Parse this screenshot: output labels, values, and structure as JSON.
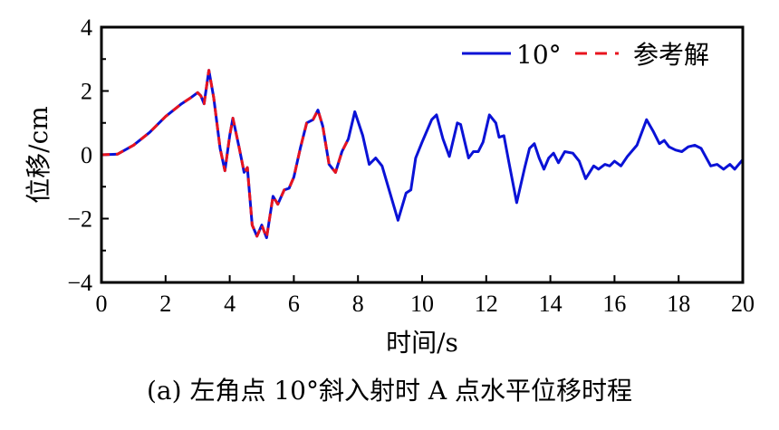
{
  "chart_data": {
    "type": "line",
    "title": "",
    "caption": "(a)  左角点 10°斜入射时 A 点水平位移时程",
    "xlabel": "时间/s",
    "ylabel": "位移/cm",
    "xlim": [
      0,
      20
    ],
    "ylim": [
      -4,
      4
    ],
    "xticks": [
      "0",
      "2",
      "4",
      "6",
      "8",
      "10",
      "12",
      "14",
      "16",
      "18",
      "20"
    ],
    "yticks": [
      "-4",
      "-2",
      "0",
      "2",
      "4"
    ],
    "grid": false,
    "legend_position": "top-right",
    "series": [
      {
        "name": "10°",
        "color": "#0a12d6",
        "style": "solid",
        "x": [
          0,
          0.5,
          1,
          1.5,
          2,
          2.5,
          2.8,
          3.0,
          3.1,
          3.2,
          3.35,
          3.5,
          3.7,
          3.85,
          4.0,
          4.1,
          4.3,
          4.45,
          4.55,
          4.7,
          4.85,
          5.0,
          5.15,
          5.35,
          5.5,
          5.7,
          5.85,
          6.0,
          6.2,
          6.4,
          6.6,
          6.75,
          6.9,
          7.1,
          7.3,
          7.5,
          7.7,
          7.9,
          8.15,
          8.35,
          8.55,
          8.75,
          9.0,
          9.25,
          9.5,
          9.65,
          9.8,
          10.0,
          10.3,
          10.45,
          10.65,
          10.85,
          11.1,
          11.2,
          11.45,
          11.6,
          11.75,
          11.9,
          12.1,
          12.3,
          12.4,
          12.55,
          12.7,
          12.95,
          13.2,
          13.35,
          13.5,
          13.65,
          13.8,
          13.95,
          14.1,
          14.25,
          14.45,
          14.7,
          14.9,
          15.1,
          15.35,
          15.5,
          15.7,
          15.85,
          16.0,
          16.2,
          16.4,
          16.7,
          17.0,
          17.2,
          17.4,
          17.55,
          17.7,
          17.9,
          18.1,
          18.3,
          18.5,
          18.7,
          19.0,
          19.2,
          19.4,
          19.6,
          19.75,
          20.0
        ],
        "y": [
          0,
          0.02,
          0.3,
          0.7,
          1.2,
          1.6,
          1.8,
          1.95,
          1.85,
          1.6,
          2.65,
          1.8,
          0.2,
          -0.5,
          0.6,
          1.15,
          0.2,
          -0.55,
          -0.4,
          -2.2,
          -2.55,
          -2.2,
          -2.6,
          -1.3,
          -1.55,
          -1.1,
          -1.05,
          -0.7,
          0.2,
          1.0,
          1.1,
          1.4,
          0.9,
          -0.3,
          -0.55,
          0.1,
          0.5,
          1.35,
          0.6,
          -0.3,
          -0.1,
          -0.35,
          -1.2,
          -2.05,
          -1.2,
          -1.1,
          -0.1,
          0.4,
          1.1,
          1.25,
          0.5,
          -0.05,
          1.0,
          0.95,
          -0.1,
          0.1,
          0.1,
          0.4,
          1.25,
          1.0,
          0.55,
          0.6,
          -0.2,
          -1.5,
          -0.4,
          0.2,
          0.35,
          -0.1,
          -0.45,
          -0.1,
          0.05,
          -0.25,
          0.1,
          0.05,
          -0.2,
          -0.75,
          -0.35,
          -0.45,
          -0.3,
          -0.35,
          -0.2,
          -0.35,
          -0.05,
          0.3,
          1.1,
          0.75,
          0.35,
          0.45,
          0.25,
          0.15,
          0.1,
          0.25,
          0.3,
          0.2,
          -0.35,
          -0.3,
          -0.45,
          -0.3,
          -0.45,
          -0.15
        ]
      },
      {
        "name": "参考解",
        "color": "#e8141e",
        "style": "dashed",
        "x": [
          0,
          0.5,
          1,
          1.5,
          2,
          2.5,
          2.8,
          3.0,
          3.1,
          3.2,
          3.35,
          3.5,
          3.7,
          3.85,
          4.0,
          4.1,
          4.3,
          4.45,
          4.55,
          4.7,
          4.85,
          5.0,
          5.15,
          5.35,
          5.5,
          5.7,
          5.85,
          6.0,
          6.2,
          6.4,
          6.6,
          6.75,
          6.9,
          7.1,
          7.3,
          7.5,
          7.7
        ],
        "y": [
          0,
          0.02,
          0.3,
          0.7,
          1.2,
          1.6,
          1.8,
          1.95,
          1.85,
          1.6,
          2.65,
          1.8,
          0.2,
          -0.5,
          0.6,
          1.15,
          0.2,
          -0.55,
          -0.4,
          -2.2,
          -2.55,
          -2.2,
          -2.6,
          -1.3,
          -1.55,
          -1.1,
          -1.05,
          -0.7,
          0.2,
          1.0,
          1.1,
          1.4,
          0.9,
          -0.3,
          -0.55,
          0.1,
          0.5
        ]
      }
    ]
  }
}
